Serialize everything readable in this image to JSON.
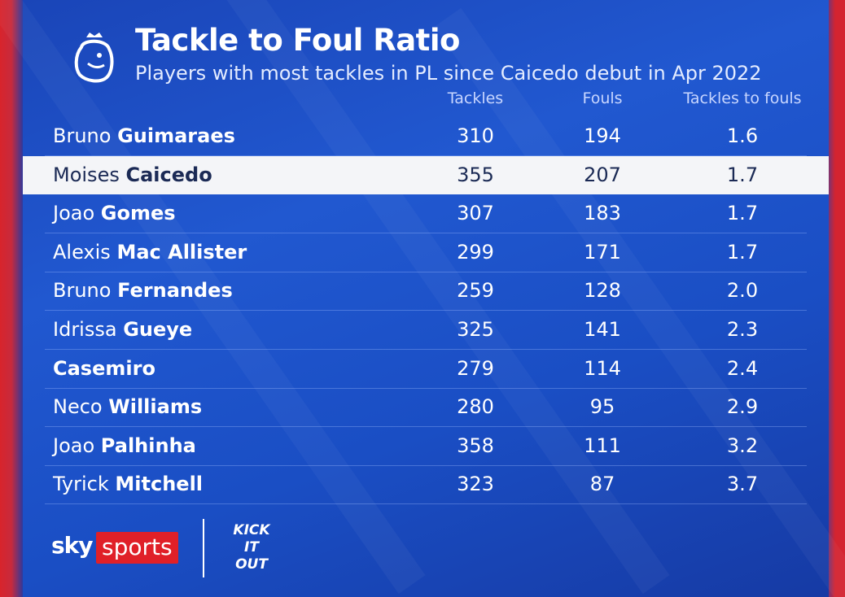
{
  "header": {
    "title": "Tackle to Foul Ratio",
    "subtitle": "Players with most tackles in PL since Caicedo debut in Apr 2022"
  },
  "table": {
    "columns": [
      "Tackles",
      "Fouls",
      "Tackles to fouls"
    ],
    "highlight_row": 1,
    "rows": [
      {
        "first": "Bruno",
        "last": "Guimaraes",
        "cells": [
          "310",
          "194",
          "1.6"
        ]
      },
      {
        "first": "Moises",
        "last": "Caicedo",
        "cells": [
          "355",
          "207",
          "1.7"
        ]
      },
      {
        "first": "Joao",
        "last": "Gomes",
        "cells": [
          "307",
          "183",
          "1.7"
        ]
      },
      {
        "first": "Alexis",
        "last": "Mac Allister",
        "cells": [
          "299",
          "171",
          "1.7"
        ]
      },
      {
        "first": "Bruno",
        "last": "Fernandes",
        "cells": [
          "259",
          "128",
          "2.0"
        ]
      },
      {
        "first": "Idrissa",
        "last": "Gueye",
        "cells": [
          "325",
          "141",
          "2.3"
        ]
      },
      {
        "last": "Casemiro",
        "cells": [
          "279",
          "114",
          "2.4"
        ]
      },
      {
        "first": "Neco",
        "last": "Williams",
        "cells": [
          "280",
          "95",
          "2.9"
        ]
      },
      {
        "first": "Joao",
        "last": "Palhinha",
        "cells": [
          "358",
          "111",
          "3.2"
        ]
      },
      {
        "first": "Tyrick",
        "last": "Mitchell",
        "cells": [
          "323",
          "87",
          "3.7"
        ]
      }
    ]
  },
  "footer": {
    "brand_sky": "sky",
    "brand_sports": "sports",
    "partner": [
      "KICK",
      "IT",
      "OUT"
    ]
  }
}
